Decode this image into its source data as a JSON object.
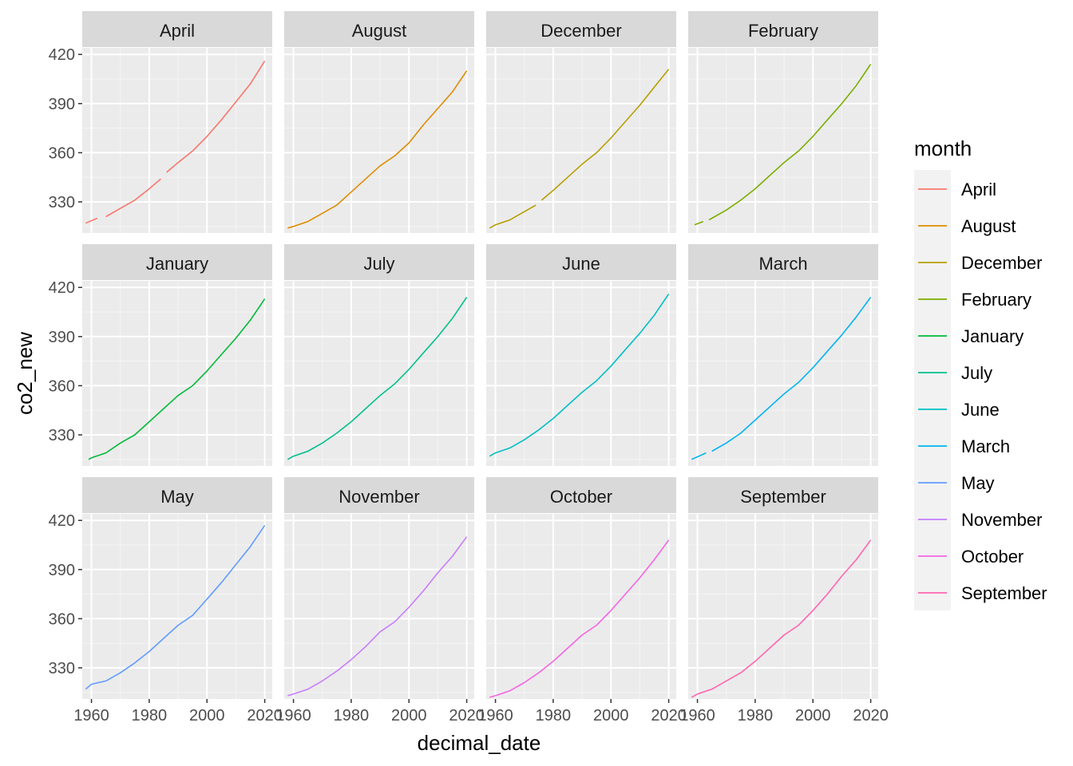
{
  "chart_data": {
    "type": "line",
    "xlabel": "decimal_date",
    "ylabel": "co2_new",
    "xlim": [
      1956.8,
      2022.6
    ],
    "ylim": [
      311,
      424
    ],
    "x_ticks": [
      1960,
      1980,
      2000,
      2020
    ],
    "y_ticks": [
      330,
      360,
      390,
      420
    ],
    "grid": true,
    "facet_layout": {
      "rows": 3,
      "cols": 4
    },
    "legend": {
      "title": "month",
      "placement": "right",
      "entries": [
        {
          "label": "April",
          "color": "#F8766D"
        },
        {
          "label": "August",
          "color": "#DE8C00"
        },
        {
          "label": "December",
          "color": "#B79F00"
        },
        {
          "label": "February",
          "color": "#7CAE00"
        },
        {
          "label": "January",
          "color": "#00BA38"
        },
        {
          "label": "July",
          "color": "#00C08B"
        },
        {
          "label": "June",
          "color": "#00BFC4"
        },
        {
          "label": "March",
          "color": "#00B4F0"
        },
        {
          "label": "May",
          "color": "#619CFF"
        },
        {
          "label": "November",
          "color": "#C77CFF"
        },
        {
          "label": "October",
          "color": "#F564E3"
        },
        {
          "label": "September",
          "color": "#FF64B0"
        }
      ]
    },
    "series": [
      {
        "name": "April",
        "color": "#F8766D",
        "segments": [
          {
            "x": [
              1958,
              1962
            ],
            "y": [
              317,
              320
            ]
          },
          {
            "x": [
              1965,
              1970,
              1975,
              1980,
              1984
            ],
            "y": [
              321,
              326,
              331,
              338,
              344
            ]
          },
          {
            "x": [
              1986,
              1990,
              1995,
              2000,
              2005,
              2010,
              2015,
              2020
            ],
            "y": [
              348,
              354,
              361,
              370,
              380,
              391,
              402,
              416
            ]
          }
        ]
      },
      {
        "name": "August",
        "color": "#DE8C00",
        "segments": [
          {
            "x": [
              1958,
              1960,
              1965,
              1970,
              1975,
              1980,
              1985,
              1990,
              1995,
              2000,
              2005,
              2010,
              2015,
              2020
            ],
            "y": [
              314,
              315,
              318,
              323,
              328,
              336,
              344,
              352,
              358,
              366,
              377,
              387,
              397,
              410
            ]
          }
        ]
      },
      {
        "name": "December",
        "color": "#B79F00",
        "segments": [
          {
            "x": [
              1958,
              1960,
              1965,
              1970,
              1974
            ],
            "y": [
              314,
              316,
              319,
              324,
              328
            ]
          },
          {
            "x": [
              1976,
              1980,
              1985,
              1990,
              1995,
              2000,
              2005,
              2010,
              2015,
              2020
            ],
            "y": [
              331,
              337,
              345,
              353,
              360,
              369,
              379,
              389,
              400,
              411
            ]
          }
        ]
      },
      {
        "name": "February",
        "color": "#7CAE00",
        "segments": [
          {
            "x": [
              1959,
              1962
            ],
            "y": [
              316,
              318
            ]
          },
          {
            "x": [
              1964,
              1965,
              1970,
              1975,
              1980,
              1985,
              1990,
              1995,
              2000,
              2005,
              2010,
              2015,
              2020
            ],
            "y": [
              319,
              320,
              325,
              331,
              338,
              346,
              354,
              361,
              370,
              380,
              390,
              401,
              414
            ]
          }
        ]
      },
      {
        "name": "January",
        "color": "#00BA38",
        "segments": [
          {
            "x": [
              1959,
              1960,
              1965,
              1970,
              1975,
              1980,
              1985,
              1990,
              1995,
              2000,
              2005,
              2010,
              2015,
              2020
            ],
            "y": [
              315,
              316,
              319,
              325,
              330,
              338,
              346,
              354,
              360,
              369,
              379,
              389,
              400,
              413
            ]
          }
        ]
      },
      {
        "name": "July",
        "color": "#00C08B",
        "segments": [
          {
            "x": [
              1958,
              1960,
              1965,
              1970,
              1975,
              1980,
              1985,
              1990,
              1995,
              2000,
              2005,
              2010,
              2015,
              2020
            ],
            "y": [
              315,
              317,
              320,
              325,
              331,
              338,
              346,
              354,
              361,
              370,
              380,
              390,
              401,
              414
            ]
          }
        ]
      },
      {
        "name": "June",
        "color": "#00BFC4",
        "segments": [
          {
            "x": [
              1958,
              1960,
              1965,
              1970,
              1975,
              1980,
              1985,
              1990,
              1995,
              2000,
              2005,
              2010,
              2015,
              2020
            ],
            "y": [
              317,
              319,
              322,
              327,
              333,
              340,
              348,
              356,
              363,
              372,
              382,
              392,
              403,
              416
            ]
          }
        ]
      },
      {
        "name": "March",
        "color": "#00B4F0",
        "segments": [
          {
            "x": [
              1958,
              1963
            ],
            "y": [
              315,
              319
            ]
          },
          {
            "x": [
              1965,
              1970,
              1975,
              1980,
              1985,
              1990,
              1995,
              2000,
              2005,
              2010,
              2015,
              2020
            ],
            "y": [
              320,
              325,
              331,
              339,
              347,
              355,
              362,
              371,
              381,
              391,
              402,
              414
            ]
          }
        ]
      },
      {
        "name": "May",
        "color": "#619CFF",
        "segments": [
          {
            "x": [
              1958,
              1960,
              1965,
              1970,
              1975,
              1980,
              1985,
              1990,
              1995,
              2000,
              2005,
              2010,
              2015,
              2020
            ],
            "y": [
              317,
              320,
              322,
              327,
              333,
              340,
              348,
              356,
              362,
              372,
              382,
              393,
              404,
              417
            ]
          }
        ]
      },
      {
        "name": "November",
        "color": "#C77CFF",
        "segments": [
          {
            "x": [
              1958,
              1960,
              1965,
              1970,
              1975,
              1980,
              1985,
              1990,
              1995,
              2000,
              2005,
              2010,
              2015,
              2020
            ],
            "y": [
              313,
              314,
              317,
              322,
              328,
              335,
              343,
              352,
              358,
              367,
              377,
              388,
              398,
              410
            ]
          }
        ]
      },
      {
        "name": "October",
        "color": "#F564E3",
        "segments": [
          {
            "x": [
              1958,
              1960,
              1965,
              1970,
              1975,
              1980,
              1985,
              1990,
              1995,
              2000,
              2005,
              2010,
              2015,
              2020
            ],
            "y": [
              312,
              313,
              316,
              321,
              327,
              334,
              342,
              350,
              356,
              365,
              375,
              385,
              396,
              408
            ]
          }
        ]
      },
      {
        "name": "September",
        "color": "#FF64B0",
        "segments": [
          {
            "x": [
              1958,
              1960,
              1965,
              1970,
              1975,
              1980,
              1985,
              1990,
              1995,
              2000,
              2005,
              2010,
              2015,
              2020
            ],
            "y": [
              312,
              314,
              317,
              322,
              327,
              334,
              342,
              350,
              356,
              365,
              375,
              386,
              396,
              408
            ]
          }
        ]
      }
    ]
  }
}
